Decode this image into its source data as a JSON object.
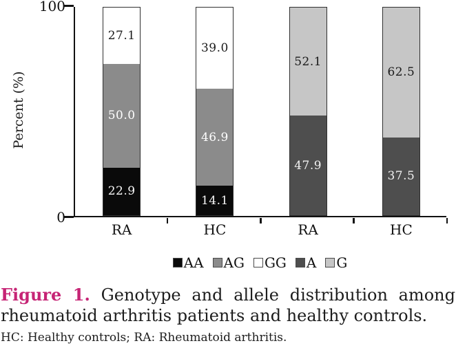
{
  "colors": {
    "accent_magenta": "#c62475",
    "axis": "#111111",
    "bar_border": "#2f2f2f",
    "background": "#ffffff"
  },
  "chart_data": {
    "type": "stacked-bar",
    "title": "",
    "xlabel": "",
    "ylabel": "Percent (%)",
    "ylim": [
      0,
      100
    ],
    "yticks": {
      "top": "100",
      "bottom": "0"
    },
    "grid": "off",
    "legend_position": "bottom-center",
    "legend": [
      {
        "name": "AA",
        "color": "#0a0a0a",
        "label_color": "#f7f7f7"
      },
      {
        "name": "AG",
        "color": "#8b8b8b",
        "label_color": "#ffffff"
      },
      {
        "name": "GG",
        "color": "#ffffff",
        "label_color": "#1a1a1a"
      },
      {
        "name": "A",
        "color": "#4e4e4e",
        "label_color": "#f2f2f2"
      },
      {
        "name": "G",
        "color": "#c6c6c6",
        "label_color": "#1a1a1a"
      }
    ],
    "categories": [
      "RA",
      "HC",
      "RA",
      "HC"
    ],
    "bars": [
      {
        "category": "RA",
        "segments": [
          {
            "name": "AA",
            "value": 22.9,
            "label": "22.9"
          },
          {
            "name": "AG",
            "value": 50.0,
            "label": "50.0"
          },
          {
            "name": "GG",
            "value": 27.1,
            "label": "27.1"
          }
        ]
      },
      {
        "category": "HC",
        "segments": [
          {
            "name": "AA",
            "value": 14.1,
            "label": "14.1"
          },
          {
            "name": "AG",
            "value": 46.9,
            "label": "46.9"
          },
          {
            "name": "GG",
            "value": 39.0,
            "label": "39.0"
          }
        ]
      },
      {
        "category": "RA",
        "segments": [
          {
            "name": "A",
            "value": 47.9,
            "label": "47.9"
          },
          {
            "name": "G",
            "value": 52.1,
            "label": "52.1"
          }
        ]
      },
      {
        "category": "HC",
        "segments": [
          {
            "name": "A",
            "value": 37.5,
            "label": "37.5"
          },
          {
            "name": "G",
            "value": 62.5,
            "label": "62.5"
          }
        ]
      }
    ]
  },
  "caption": {
    "figure_label": "Figure 1.",
    "line1_rest": "Genotype and allele distribution among",
    "line2": "rheumatoid arthritis patients and healthy controls.",
    "footnote": "HC: Healthy controls; RA: Rheumatoid arthritis."
  }
}
